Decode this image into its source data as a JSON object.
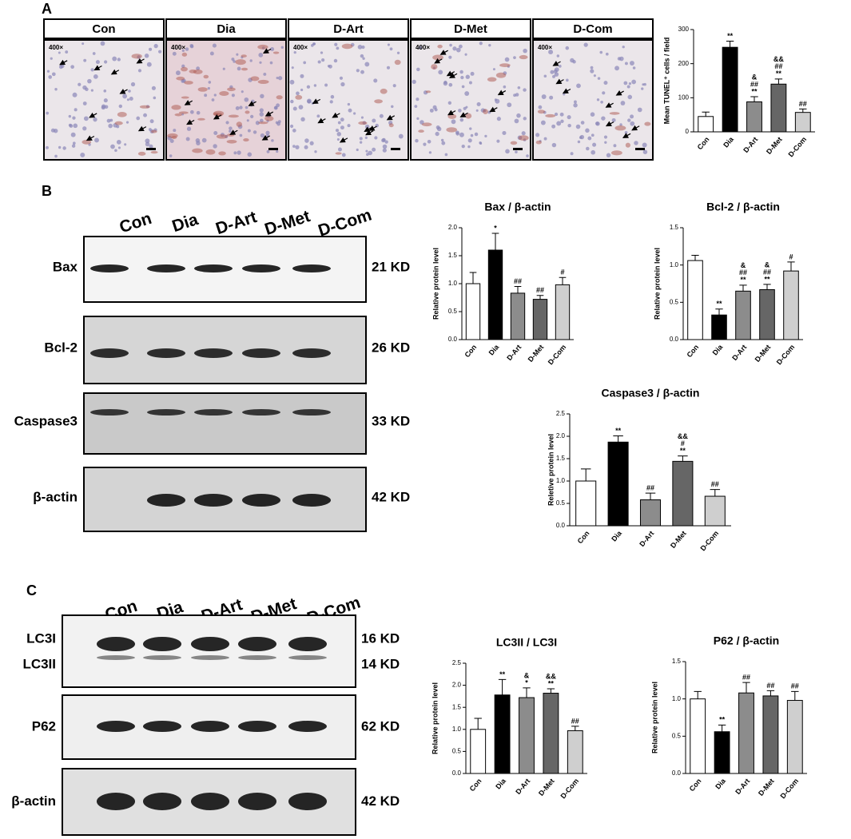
{
  "panel_labels": [
    "A",
    "B",
    "C"
  ],
  "micrographs": {
    "magnification": "400×",
    "labels": [
      "Con",
      "Dia",
      "D-Art",
      "D-Met",
      "D-Com"
    ]
  },
  "blot_B": {
    "lanes": [
      "Con",
      "Dia",
      "D-Art",
      "D-Met",
      "D-Com"
    ],
    "rows": [
      {
        "label": "Bax",
        "size": "21 KD"
      },
      {
        "label": "Bcl-2",
        "size": "26 KD"
      },
      {
        "label": "Caspase3",
        "size": "33 KD"
      },
      {
        "label": "β-actin",
        "size": "42 KD"
      }
    ]
  },
  "blot_C": {
    "lanes": [
      "Con",
      "Dia",
      "D-Art",
      "D-Met",
      "D-Com"
    ],
    "rows": [
      {
        "labels": [
          "LC3I",
          "LC3II"
        ],
        "sizes": [
          "16 KD",
          "14 KD"
        ]
      },
      {
        "labels": [
          "P62"
        ],
        "sizes": [
          "62 KD"
        ]
      },
      {
        "labels": [
          "β-actin"
        ],
        "sizes": [
          "42 KD"
        ]
      }
    ]
  },
  "chart_data": [
    {
      "type": "bar",
      "ylabel": "Mean TUNEL⁺ cells / field",
      "categories": [
        "Con",
        "Dia",
        "D-Art",
        "D-Met",
        "D-Com"
      ],
      "values": [
        45,
        248,
        88,
        140,
        57
      ],
      "errors": [
        13,
        18,
        15,
        15,
        10
      ],
      "colors": [
        "#ffffff",
        "#000000",
        "#8c8c8c",
        "#666666",
        "#cfcfcf"
      ],
      "annotations": [
        [],
        [
          "**"
        ],
        [
          "&",
          "##",
          "**"
        ],
        [
          "&&",
          "##",
          "**"
        ],
        [
          "##"
        ]
      ],
      "ylim": [
        0,
        300
      ],
      "yticks": [
        0,
        100,
        200,
        300
      ]
    },
    {
      "type": "bar",
      "title": "Bax / β-actin",
      "ylabel": "Relative protein level",
      "categories": [
        "Con",
        "Dia",
        "D-Art",
        "D-Met",
        "D-Com"
      ],
      "values": [
        1.0,
        1.6,
        0.83,
        0.72,
        0.98
      ],
      "errors": [
        0.2,
        0.3,
        0.12,
        0.07,
        0.13
      ],
      "colors": [
        "#ffffff",
        "#000000",
        "#8c8c8c",
        "#666666",
        "#cfcfcf"
      ],
      "annotations": [
        [],
        [
          "*"
        ],
        [
          "##"
        ],
        [
          "##"
        ],
        [
          "#"
        ]
      ],
      "ylim": [
        0,
        2
      ],
      "yticks": [
        {
          "value": 0,
          "label": "0.0"
        },
        {
          "value": 0.5,
          "label": "0.5"
        },
        {
          "value": 1,
          "label": "1.0"
        },
        {
          "value": 1.5,
          "label": "1.5"
        },
        {
          "value": 2,
          "label": "2.0"
        }
      ]
    },
    {
      "type": "bar",
      "title": "Bcl-2 / β-actin",
      "ylabel": "Relative protein level",
      "categories": [
        "Con",
        "Dia",
        "D-Art",
        "D-Met",
        "D-Com"
      ],
      "values": [
        1.06,
        0.33,
        0.65,
        0.67,
        0.92
      ],
      "errors": [
        0.07,
        0.08,
        0.08,
        0.07,
        0.12
      ],
      "colors": [
        "#ffffff",
        "#000000",
        "#8c8c8c",
        "#666666",
        "#cfcfcf"
      ],
      "annotations": [
        [],
        [
          "**"
        ],
        [
          "&",
          "##",
          "**"
        ],
        [
          "&",
          "##",
          "**"
        ],
        [
          "#"
        ]
      ],
      "ylim": [
        0,
        1.5
      ],
      "yticks": [
        {
          "value": 0,
          "label": "0.0"
        },
        {
          "value": 0.5,
          "label": "0.5"
        },
        {
          "value": 1,
          "label": "1.0"
        },
        {
          "value": 1.5,
          "label": "1.5"
        }
      ]
    },
    {
      "type": "bar",
      "title": "Caspase3 / β-actin",
      "ylabel": "Reletive protein level",
      "categories": [
        "Con",
        "Dia",
        "D-Art",
        "D-Met",
        "D-Com"
      ],
      "values": [
        1.0,
        1.87,
        0.58,
        1.44,
        0.66
      ],
      "errors": [
        0.27,
        0.14,
        0.15,
        0.12,
        0.15
      ],
      "colors": [
        "#ffffff",
        "#000000",
        "#8c8c8c",
        "#666666",
        "#cfcfcf"
      ],
      "annotations": [
        [],
        [
          "**"
        ],
        [
          "##"
        ],
        [
          "&&",
          "#",
          "**"
        ],
        [
          "##"
        ]
      ],
      "ylim": [
        0,
        2.5
      ],
      "yticks": [
        {
          "value": 0,
          "label": "0.0"
        },
        {
          "value": 0.5,
          "label": "0.5"
        },
        {
          "value": 1,
          "label": "1.0"
        },
        {
          "value": 1.5,
          "label": "1.5"
        },
        {
          "value": 2,
          "label": "2.0"
        },
        {
          "value": 2.5,
          "label": "2.5"
        }
      ]
    },
    {
      "type": "bar",
      "title": "LC3II / LC3I",
      "ylabel": "Relative protein level",
      "categories": [
        "Con",
        "Dia",
        "D-Art",
        "D-Met",
        "D-Com"
      ],
      "values": [
        1.0,
        1.78,
        1.72,
        1.82,
        0.97
      ],
      "errors": [
        0.25,
        0.35,
        0.22,
        0.1,
        0.1
      ],
      "colors": [
        "#ffffff",
        "#000000",
        "#8c8c8c",
        "#666666",
        "#cfcfcf"
      ],
      "annotations": [
        [],
        [
          "**"
        ],
        [
          "&",
          "*"
        ],
        [
          "&&",
          "**"
        ],
        [
          "##"
        ]
      ],
      "ylim": [
        0,
        2.5
      ],
      "yticks": [
        {
          "value": 0,
          "label": "0.0"
        },
        {
          "value": 0.5,
          "label": "0.5"
        },
        {
          "value": 1,
          "label": "1.0"
        },
        {
          "value": 1.5,
          "label": "1.5"
        },
        {
          "value": 2,
          "label": "2.0"
        },
        {
          "value": 2.5,
          "label": "2.5"
        }
      ]
    },
    {
      "type": "bar",
      "title": "P62 / β-actin",
      "ylabel": "Relative protein level",
      "categories": [
        "Con",
        "Dia",
        "D-Art",
        "D-Met",
        "D-Com"
      ],
      "values": [
        1.0,
        0.56,
        1.08,
        1.04,
        0.98
      ],
      "errors": [
        0.1,
        0.09,
        0.14,
        0.07,
        0.12
      ],
      "colors": [
        "#ffffff",
        "#000000",
        "#8c8c8c",
        "#666666",
        "#cfcfcf"
      ],
      "annotations": [
        [],
        [
          "**"
        ],
        [
          "##"
        ],
        [
          "##"
        ],
        [
          "##"
        ]
      ],
      "ylim": [
        0,
        1.5
      ],
      "yticks": [
        {
          "value": 0,
          "label": "0.0"
        },
        {
          "value": 0.5,
          "label": "0.5"
        },
        {
          "value": 1,
          "label": "1.0"
        },
        {
          "value": 1.5,
          "label": "1.5"
        }
      ]
    }
  ]
}
